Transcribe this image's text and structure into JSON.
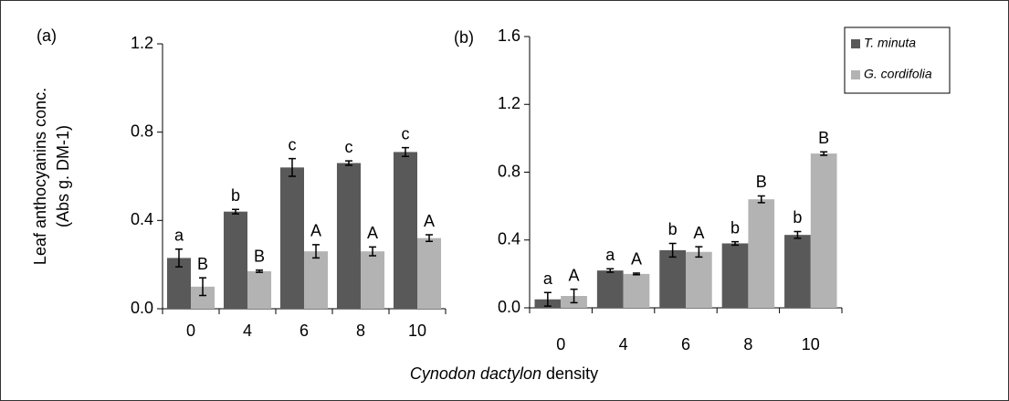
{
  "chart_data": [
    {
      "type": "bar",
      "title": "(a)",
      "ylabel": [
        "Leaf anthocyanins conc.",
        "(Abs g. DM-1)"
      ],
      "categories": [
        "0",
        "4",
        "6",
        "8",
        "10"
      ],
      "series": [
        {
          "color": "#595959",
          "values": [
            0.23,
            0.44,
            0.64,
            0.66,
            0.71
          ],
          "errors": [
            0.04,
            0.01,
            0.04,
            0.01,
            0.02
          ],
          "labels": [
            "a",
            "b",
            "c",
            "c",
            "c"
          ]
        },
        {
          "color": "#b3b3b3",
          "values": [
            0.1,
            0.17,
            0.26,
            0.26,
            0.32
          ],
          "errors": [
            0.04,
            0.005,
            0.03,
            0.02,
            0.015
          ],
          "labels": [
            "B",
            "B",
            "A",
            "A",
            "A"
          ]
        }
      ],
      "ylim": [
        0,
        1.2
      ],
      "yticks": [
        {
          "value": 0,
          "label": "0.0"
        },
        0.4,
        0.8,
        1.2
      ]
    },
    {
      "type": "bar",
      "title": "(b)",
      "categories": [
        "0",
        "4",
        "6",
        "8",
        "10"
      ],
      "series": [
        {
          "name": "T. minuta",
          "color": "#595959",
          "values": [
            0.05,
            0.22,
            0.34,
            0.38,
            0.43
          ],
          "errors": [
            0.04,
            0.01,
            0.04,
            0.01,
            0.02
          ],
          "labels": [
            "a",
            "a",
            "b",
            "b",
            "b"
          ]
        },
        {
          "name": "G. cordifolia",
          "color": "#b3b3b3",
          "values": [
            0.07,
            0.2,
            0.33,
            0.64,
            0.91
          ],
          "errors": [
            0.04,
            0.005,
            0.03,
            0.02,
            0.01
          ],
          "labels": [
            "A",
            "A",
            "A",
            "B",
            "B"
          ]
        }
      ],
      "ylim": [
        0,
        1.6
      ],
      "yticks": [
        {
          "value": 0,
          "label": "0.0"
        },
        0.4,
        0.8,
        1.2,
        1.6
      ],
      "legend": "top-right"
    }
  ],
  "xlabel": {
    "italic": "Cynodon dactylon",
    "text": "density"
  }
}
